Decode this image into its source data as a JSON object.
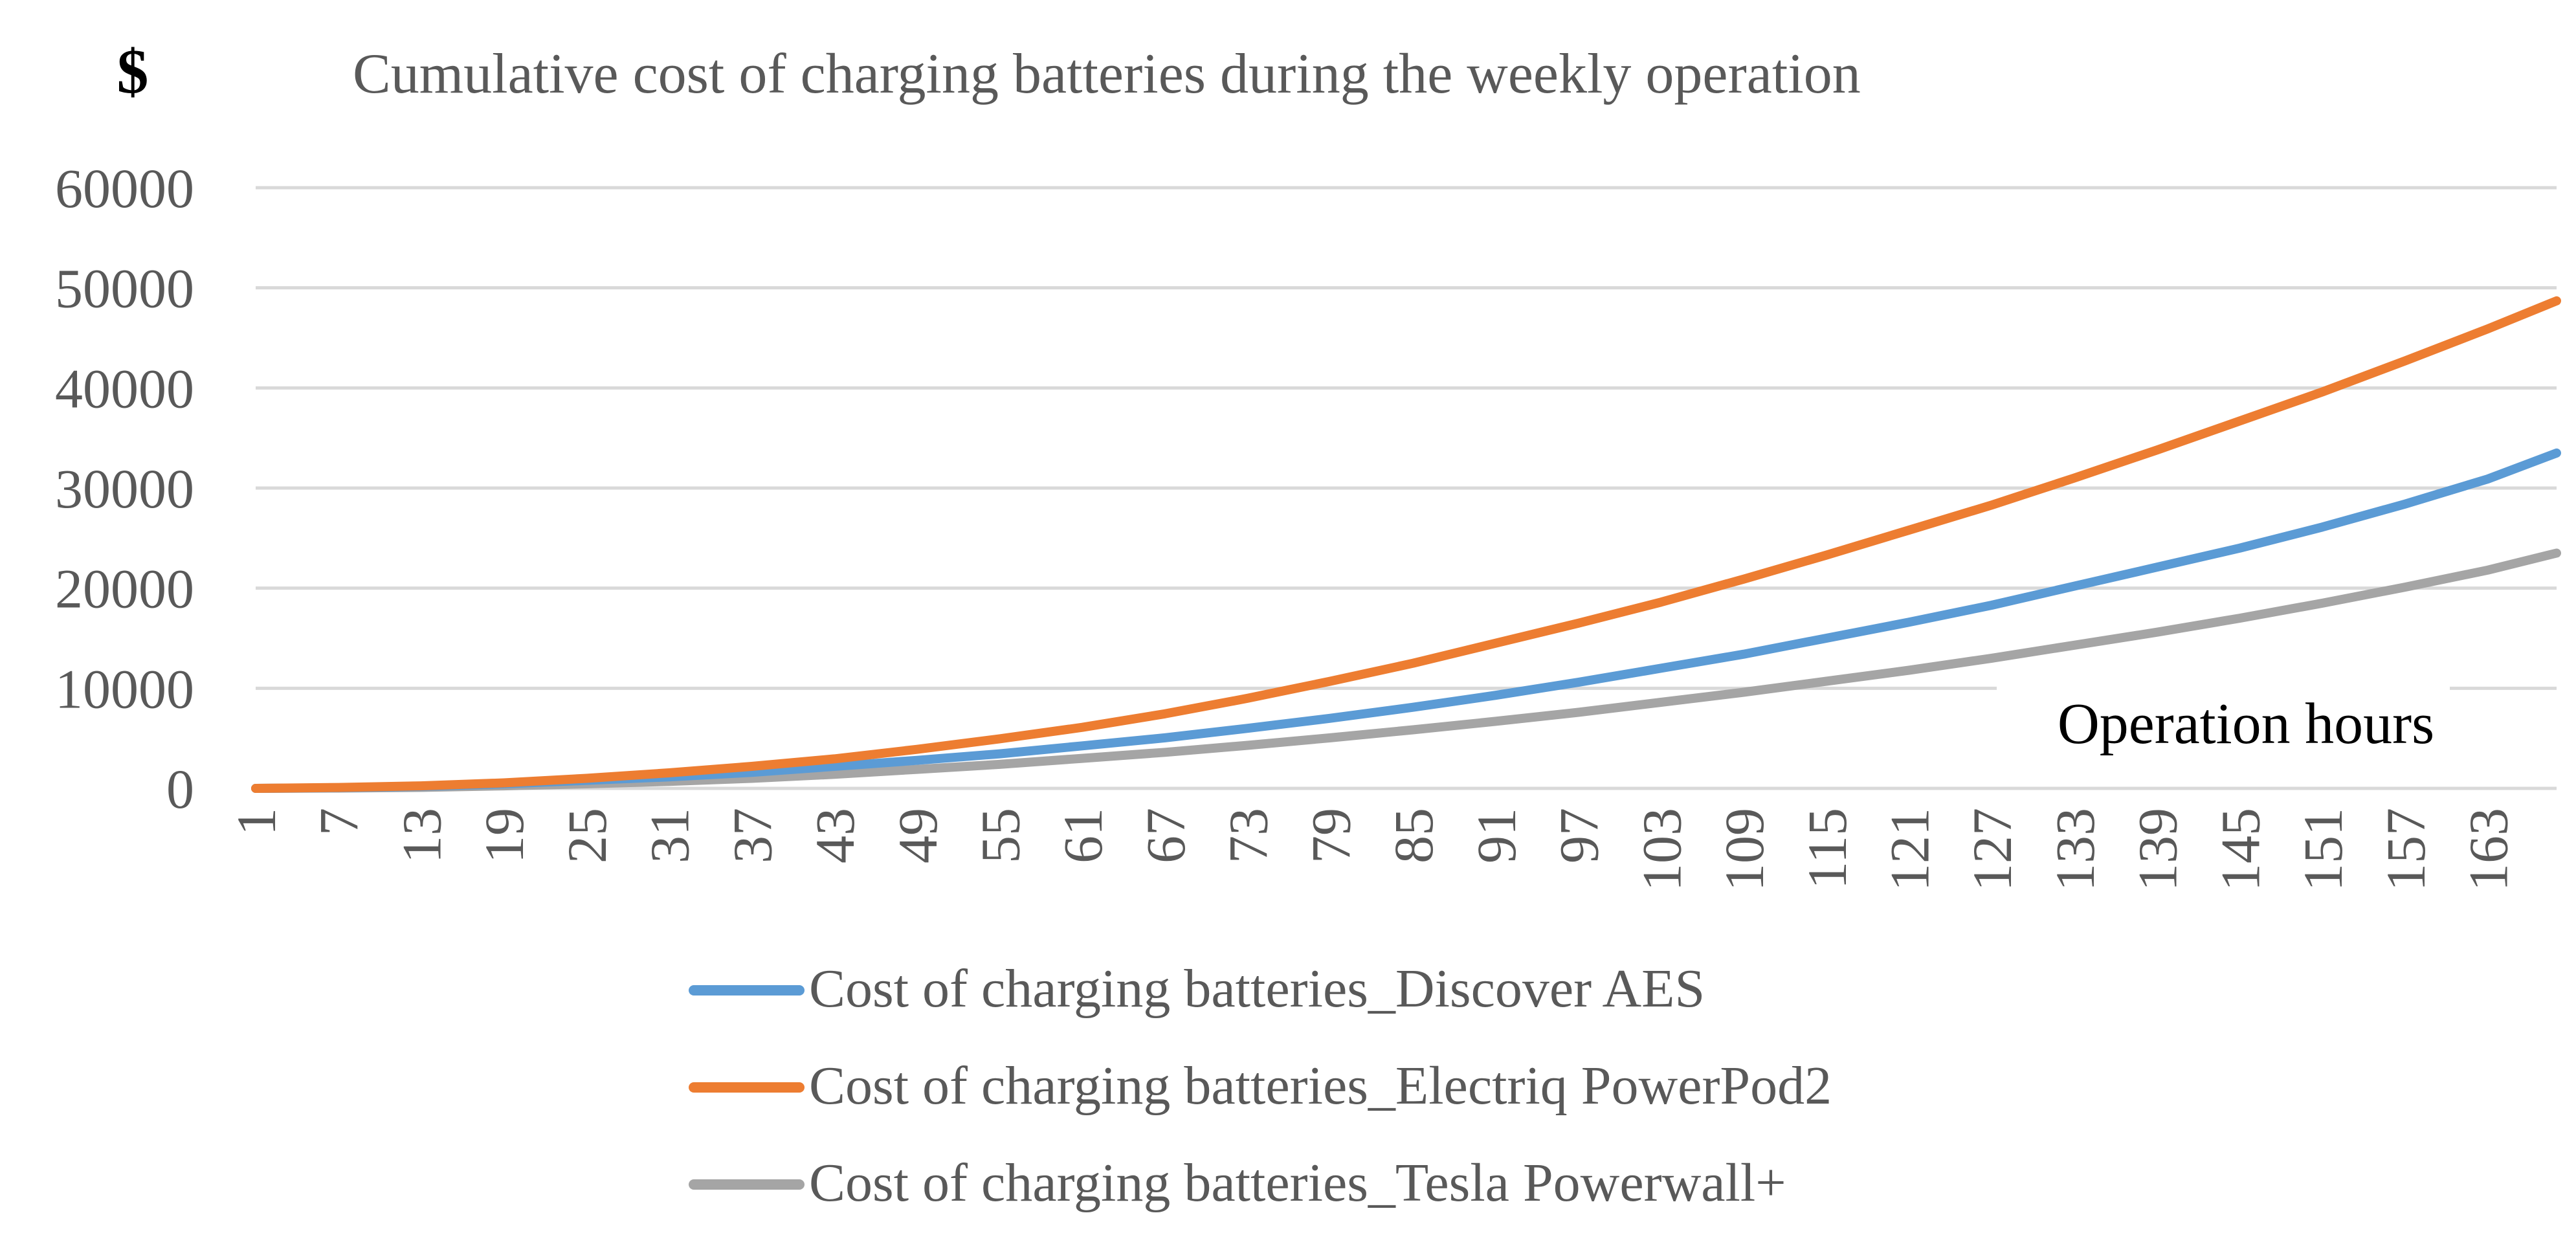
{
  "chart_data": {
    "type": "line",
    "title": "Cumulative cost of charging batteries during the weekly operation",
    "ylabel": "$",
    "xlabel": "Operation hours",
    "ylim": [
      0,
      60000
    ],
    "yticks": [
      0,
      10000,
      20000,
      30000,
      40000,
      50000,
      60000
    ],
    "xlim": [
      1,
      168
    ],
    "xticks": [
      1,
      7,
      13,
      19,
      25,
      31,
      37,
      43,
      49,
      55,
      61,
      67,
      73,
      79,
      85,
      91,
      97,
      103,
      109,
      115,
      121,
      127,
      133,
      139,
      145,
      151,
      157,
      163
    ],
    "grid": true,
    "legend_position": "bottom",
    "x": [
      1,
      7,
      13,
      19,
      25,
      31,
      37,
      43,
      49,
      55,
      61,
      67,
      73,
      79,
      85,
      91,
      97,
      103,
      109,
      115,
      121,
      127,
      133,
      139,
      145,
      151,
      157,
      163,
      168
    ],
    "series": [
      {
        "name": "Cost of charging batteries_Discover AES",
        "color": "#5B9BD5",
        "values": [
          0,
          60,
          200,
          450,
          800,
          1150,
          1600,
          2200,
          2800,
          3450,
          4250,
          5050,
          6000,
          7000,
          8100,
          9300,
          10600,
          12000,
          13400,
          15000,
          16600,
          18300,
          20200,
          22100,
          24000,
          26100,
          28400,
          30900,
          33500
        ]
      },
      {
        "name": "Cost of charging batteries_Electriq PowerPod2",
        "color": "#ED7D31",
        "values": [
          0,
          90,
          250,
          550,
          1000,
          1550,
          2200,
          2950,
          3900,
          4950,
          6100,
          7450,
          9000,
          10700,
          12500,
          14500,
          16500,
          18600,
          20900,
          23300,
          25800,
          28300,
          31000,
          33800,
          36700,
          39600,
          42700,
          45900,
          48700
        ]
      },
      {
        "name": "Cost of charging batteries_Tesla Powerwall+",
        "color": "#A5A5A5",
        "values": [
          0,
          30,
          100,
          250,
          450,
          700,
          1000,
          1400,
          1900,
          2400,
          3000,
          3600,
          4300,
          5050,
          5850,
          6700,
          7600,
          8600,
          9600,
          10700,
          11800,
          13000,
          14300,
          15600,
          17000,
          18500,
          20100,
          21800,
          23500
        ]
      }
    ],
    "annotations": [
      "Operation hours"
    ]
  }
}
